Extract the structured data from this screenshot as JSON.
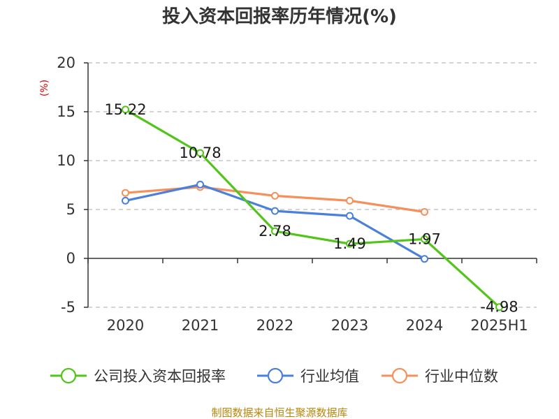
{
  "chart_data": {
    "type": "line",
    "title": "投入资本回报率历年情况(%)",
    "ylabel": "(%)",
    "categories": [
      "2020",
      "2021",
      "2022",
      "2023",
      "2024",
      "2025H1"
    ],
    "ylim": [
      -5,
      20
    ],
    "yticks": [
      20,
      15,
      10,
      5,
      0,
      -5
    ],
    "grid": true,
    "legend_position": "bottom",
    "series": [
      {
        "name": "公司投入资本回报率",
        "color": "#52c41a",
        "values": [
          15.22,
          10.78,
          2.78,
          1.49,
          1.97,
          -4.98
        ],
        "labels": [
          "15.22",
          "10.78",
          "2.78",
          "1.49",
          "1.97",
          "-4.98"
        ]
      },
      {
        "name": "行业均值",
        "color": "#4a7fdb",
        "values": [
          5.9,
          7.55,
          4.85,
          4.35,
          -0.05,
          null
        ]
      },
      {
        "name": "行业中位数",
        "color": "#f5905a",
        "values": [
          6.7,
          7.3,
          6.4,
          5.9,
          4.75,
          null
        ]
      }
    ]
  },
  "footer": {
    "source": "制图数据来自恒生聚源数据库"
  }
}
